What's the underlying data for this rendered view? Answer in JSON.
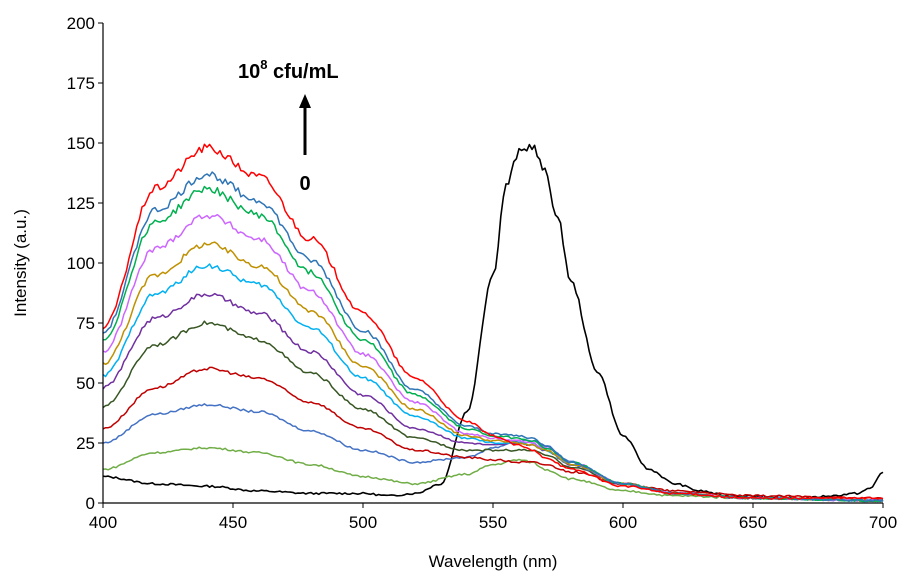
{
  "chart_data": {
    "type": "line",
    "xlabel": "Wavelength (nm)",
    "ylabel": "Intensity (a.u.)",
    "xlim": [
      400,
      700
    ],
    "ylim": [
      0,
      200
    ],
    "xticks": [
      "400",
      "450",
      "500",
      "550",
      "600",
      "650",
      "700"
    ],
    "yticks": [
      "0",
      "25",
      "50",
      "75",
      "100",
      "125",
      "150",
      "175",
      "200"
    ],
    "grid": false,
    "legend": "none",
    "annotations": {
      "top_base": "10",
      "top_exp": "8",
      "top_unit": " cfu/mL",
      "bottom": "0",
      "arrow": "up"
    },
    "series": [
      {
        "color": "#000000",
        "x": [
          400,
          420,
          440,
          460,
          480,
          500,
          510,
          520,
          530,
          540,
          550,
          555,
          560,
          565,
          570,
          575,
          580,
          590,
          600,
          610,
          620,
          630,
          640,
          650,
          660,
          670,
          680,
          690,
          695,
          700
        ],
        "values": [
          11,
          8,
          7,
          5,
          4,
          4,
          3,
          4,
          8,
          38,
          95,
          132,
          146,
          149,
          138,
          118,
          92,
          55,
          28,
          14,
          8,
          5,
          3,
          3,
          2,
          2,
          3,
          4,
          6,
          13
        ]
      },
      {
        "color": "#70AD47",
        "x": [
          400,
          420,
          440,
          460,
          480,
          500,
          520,
          540,
          550,
          560,
          565,
          570,
          580,
          600,
          620,
          650,
          700
        ],
        "values": [
          14,
          21,
          23,
          21,
          16,
          11,
          8,
          12,
          16,
          18,
          17,
          14,
          10,
          5,
          3,
          2,
          1
        ]
      },
      {
        "color": "#4472C4",
        "x": [
          400,
          420,
          440,
          460,
          480,
          500,
          520,
          540,
          550,
          560,
          565,
          570,
          580,
          600,
          620,
          650,
          700
        ],
        "values": [
          25,
          37,
          41,
          38,
          30,
          22,
          17,
          19,
          23,
          26,
          26,
          24,
          17,
          8,
          4,
          2,
          1
        ]
      },
      {
        "color": "#C00000",
        "x": [
          400,
          420,
          440,
          460,
          480,
          500,
          520,
          540,
          550,
          560,
          565,
          570,
          580,
          600,
          620,
          650,
          700
        ],
        "values": [
          31,
          48,
          56,
          52,
          42,
          31,
          22,
          19,
          18,
          17,
          17,
          16,
          13,
          8,
          5,
          3,
          2
        ]
      },
      {
        "color": "#375623",
        "x": [
          400,
          420,
          440,
          460,
          480,
          500,
          520,
          540,
          550,
          560,
          565,
          570,
          580,
          600,
          620,
          650,
          700
        ],
        "values": [
          40,
          66,
          75,
          68,
          54,
          39,
          27,
          22,
          22,
          22,
          22,
          20,
          15,
          8,
          4,
          2,
          1
        ]
      },
      {
        "color": "#7030A0",
        "x": [
          400,
          420,
          440,
          460,
          480,
          500,
          520,
          540,
          550,
          560,
          565,
          570,
          580,
          600,
          620,
          650,
          700
        ],
        "values": [
          48,
          77,
          87,
          79,
          63,
          45,
          31,
          25,
          24,
          25,
          24,
          22,
          16,
          8,
          4,
          2,
          1
        ]
      },
      {
        "color": "#00B0F0",
        "x": [
          400,
          420,
          440,
          460,
          480,
          500,
          520,
          540,
          550,
          560,
          565,
          570,
          580,
          600,
          620,
          650,
          700
        ],
        "values": [
          53,
          87,
          99,
          91,
          73,
          52,
          36,
          27,
          25,
          25,
          25,
          22,
          16,
          8,
          4,
          2,
          1
        ]
      },
      {
        "color": "#BF9000",
        "x": [
          400,
          420,
          440,
          460,
          480,
          500,
          520,
          540,
          550,
          560,
          565,
          570,
          580,
          600,
          620,
          650,
          700
        ],
        "values": [
          58,
          95,
          108,
          99,
          80,
          57,
          39,
          28,
          26,
          25,
          24,
          22,
          16,
          8,
          4,
          2,
          1
        ]
      },
      {
        "color": "#CC66FF",
        "x": [
          400,
          420,
          440,
          460,
          480,
          500,
          520,
          540,
          550,
          560,
          565,
          570,
          580,
          600,
          620,
          650,
          700
        ],
        "values": [
          63,
          106,
          120,
          110,
          88,
          62,
          42,
          29,
          27,
          26,
          25,
          23,
          17,
          8,
          4,
          2,
          1
        ]
      },
      {
        "color": "#00B050",
        "x": [
          400,
          420,
          440,
          460,
          480,
          500,
          520,
          540,
          550,
          560,
          565,
          570,
          580,
          600,
          620,
          650,
          700
        ],
        "values": [
          68,
          117,
          131,
          120,
          96,
          68,
          45,
          31,
          28,
          27,
          26,
          23,
          17,
          8,
          4,
          2,
          1
        ]
      },
      {
        "color": "#2E75B6",
        "x": [
          400,
          420,
          440,
          460,
          480,
          500,
          520,
          540,
          550,
          560,
          565,
          570,
          580,
          600,
          620,
          650,
          700
        ],
        "values": [
          71,
          122,
          137,
          126,
          101,
          72,
          47,
          32,
          29,
          28,
          27,
          24,
          17,
          8,
          4,
          2,
          1
        ]
      },
      {
        "color": "#FF0000",
        "x": [
          400,
          420,
          440,
          460,
          480,
          500,
          520,
          540,
          550,
          560,
          565,
          570,
          580,
          600,
          620,
          650,
          700
        ],
        "values": [
          73,
          131,
          148,
          136,
          110,
          79,
          52,
          34,
          28,
          24,
          22,
          19,
          14,
          7,
          4,
          2,
          2
        ]
      }
    ]
  }
}
